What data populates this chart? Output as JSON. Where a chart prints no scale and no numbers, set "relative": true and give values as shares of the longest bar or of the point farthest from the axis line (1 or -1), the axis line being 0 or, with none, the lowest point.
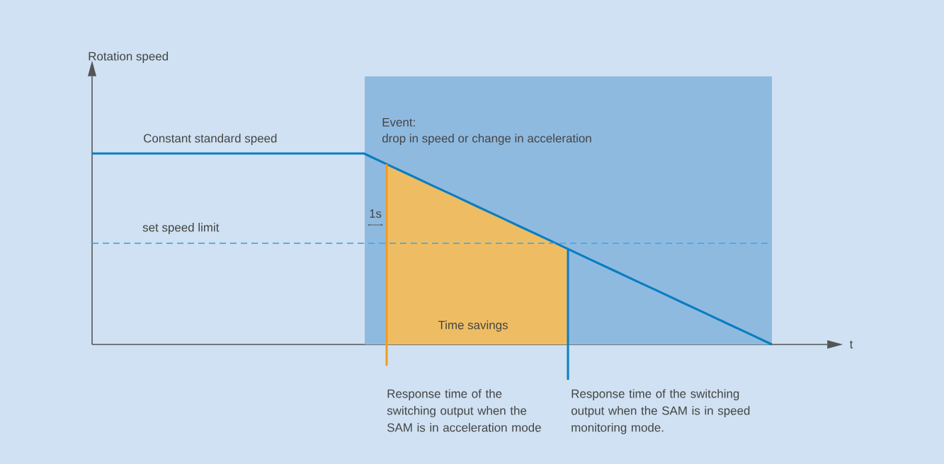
{
  "chart_data": {
    "type": "line",
    "relative": true,
    "categories": [
      null,
      null,
      null,
      null,
      null,
      null,
      null,
      null,
      null,
      null,
      null,
      null,
      null,
      null,
      null,
      null,
      null,
      null,
      null,
      null,
      null,
      null,
      null,
      null,
      null,
      null,
      null,
      null,
      null,
      null,
      null
    ],
    "series": [
      {
        "color": "#0b7dc1",
        "values": [
          1,
          1,
          1,
          1,
          1,
          1,
          1,
          1,
          1,
          1,
          1,
          1,
          1,
          0.944,
          0.889,
          0.833,
          0.778,
          0.722,
          0.667,
          0.611,
          0.556,
          0.5,
          0.444,
          0.389,
          0.333,
          0.278,
          0.222,
          0.167,
          0.111,
          0.056,
          0
        ]
      },
      {
        "type": "area",
        "color": "#eebd63",
        "values": [
          null,
          null,
          null,
          null,
          null,
          null,
          null,
          null,
          null,
          null,
          null,
          null,
          null,
          0.944,
          0.889,
          0.833,
          0.778,
          0.722,
          0.667,
          0.611,
          0.556,
          0.5,
          null,
          null,
          null,
          null,
          null,
          null,
          null,
          null,
          null
        ]
      }
    ],
    "ref_lines": [
      {
        "axis": "y",
        "value": 0.53,
        "label": "set speed limit",
        "color": "#4aa8e0",
        "line_style": "dashed"
      }
    ],
    "annotations": [
      "Rotation speed",
      "t",
      "Constant standard speed",
      "Event:",
      "drop in speed or change in acceleration",
      "1s",
      "Time savings",
      "Response time of the switching output when the SAM is in acceleration mode",
      "Response time of the switching output when the SAM is in speed monitoring mode."
    ]
  }
}
